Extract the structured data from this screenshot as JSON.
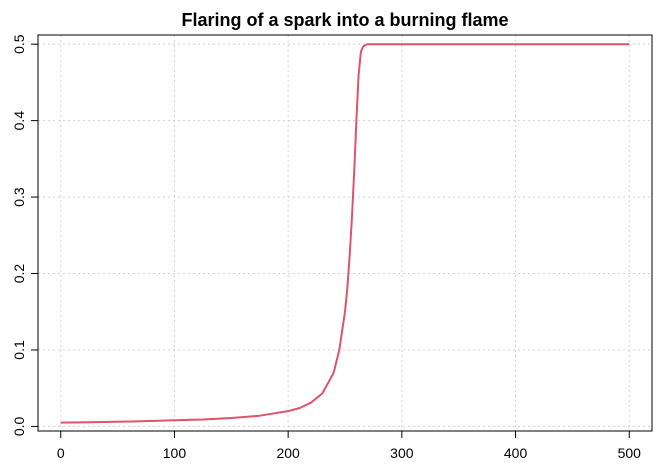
{
  "chart_data": {
    "type": "line",
    "title": "Flaring of a spark into a burning flame",
    "xlabel": "",
    "ylabel": "",
    "xlim": [
      -20,
      520
    ],
    "ylim": [
      -0.006,
      0.512
    ],
    "x_ticks": [
      0,
      100,
      200,
      300,
      400,
      500
    ],
    "x_tick_labels": [
      "0",
      "100",
      "200",
      "300",
      "400",
      "500"
    ],
    "y_ticks": [
      0.0,
      0.1,
      0.2,
      0.3,
      0.4,
      0.5
    ],
    "y_tick_labels": [
      "0.0",
      "0.1",
      "0.2",
      "0.3",
      "0.4",
      "0.5"
    ],
    "grid": true,
    "legend": "none",
    "series": [
      {
        "color": "#DF536B",
        "x": [
          0,
          25,
          50,
          75,
          100,
          125,
          150,
          175,
          200,
          210,
          220,
          230,
          240,
          245,
          250,
          252,
          254,
          256,
          258,
          260,
          262,
          264,
          266,
          268,
          270,
          275,
          280,
          300,
          350,
          400,
          450,
          500
        ],
        "y": [
          0.005,
          0.0055,
          0.006,
          0.007,
          0.008,
          0.009,
          0.011,
          0.014,
          0.02,
          0.024,
          0.031,
          0.043,
          0.07,
          0.1,
          0.15,
          0.18,
          0.22,
          0.27,
          0.33,
          0.4,
          0.46,
          0.49,
          0.497,
          0.499,
          0.5,
          0.5,
          0.5,
          0.5,
          0.5,
          0.5,
          0.5,
          0.5
        ]
      }
    ]
  }
}
